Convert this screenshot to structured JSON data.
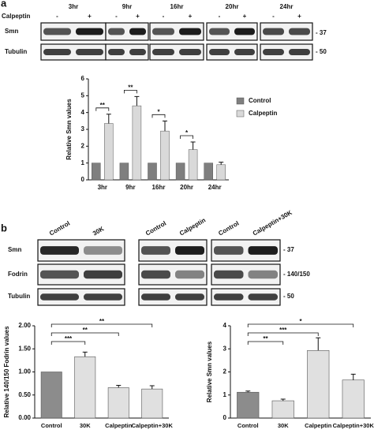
{
  "panel_a": {
    "label": "a",
    "treatment": "Calpeptin",
    "signs": [
      "-",
      "+"
    ],
    "timepoints": [
      "3hr",
      "9hr",
      "16hr",
      "20hr",
      "24hr"
    ],
    "rows": [
      "Smn",
      "Tubulin"
    ],
    "markers": [
      "- 37",
      "- 50"
    ]
  },
  "panel_b": {
    "label": "b",
    "lanes": [
      "Control",
      "30K",
      "Control",
      "Calpeptin",
      "Control",
      "Calpeptin+30K"
    ],
    "rows": [
      "Smn",
      "Fodrin",
      "Tubulin"
    ],
    "markers": [
      "- 37",
      "- 140/150",
      "- 50"
    ]
  },
  "chart_data": [
    {
      "type": "bar",
      "ylabel": "Relative Smn values",
      "categories": [
        "3hr",
        "9hr",
        "16hr",
        "20hr",
        "24hr"
      ],
      "series": [
        {
          "name": "Control",
          "color": "#7f7f7f",
          "values": [
            1,
            1,
            1,
            1,
            1
          ]
        },
        {
          "name": "Calpeptin",
          "color": "#d9d9d9",
          "values": [
            3.35,
            4.4,
            2.9,
            1.8,
            0.9
          ],
          "errors": [
            0.55,
            0.55,
            0.6,
            0.45,
            0.15
          ]
        }
      ],
      "significance": [
        "**",
        "**",
        "*",
        "*",
        null
      ],
      "ylim": [
        0,
        6
      ],
      "yticks": [
        0,
        1,
        2,
        3,
        4,
        5,
        6
      ],
      "legend": "right"
    },
    {
      "type": "bar",
      "ylabel": "Relative 140/150 Fodrin values",
      "categories": [
        "Control",
        "30K",
        "Calpeptin",
        "Calpeptin+30K"
      ],
      "values": [
        1.0,
        1.33,
        0.66,
        0.63
      ],
      "errors": [
        0,
        0.1,
        0.05,
        0.07
      ],
      "colors": [
        "#8c8c8c",
        "#e0e0e0",
        "#e0e0e0",
        "#e0e0e0"
      ],
      "significance": [
        null,
        "***",
        "**",
        "**"
      ],
      "ylim": [
        0,
        2
      ],
      "yticks": [
        {
          "value": 0,
          "label": "0.00"
        },
        {
          "value": 0.5,
          "label": "0.50"
        },
        {
          "value": 1,
          "label": "1.00"
        },
        {
          "value": 1.5,
          "label": "1.50"
        },
        {
          "value": 2,
          "label": "2.00"
        }
      ]
    },
    {
      "type": "bar",
      "ylabel": "Relative Smn values",
      "categories": [
        "Control",
        "30K",
        "Calpeptin",
        "Calpeptin+30K"
      ],
      "values": [
        1.12,
        0.75,
        2.93,
        1.65
      ],
      "errors": [
        0.05,
        0.07,
        0.55,
        0.25
      ],
      "colors": [
        "#8c8c8c",
        "#e0e0e0",
        "#e0e0e0",
        "#e0e0e0"
      ],
      "significance": [
        null,
        "**",
        "***",
        "*"
      ],
      "ylim": [
        0,
        4
      ],
      "yticks": [
        0,
        1,
        2,
        3,
        4
      ]
    }
  ]
}
